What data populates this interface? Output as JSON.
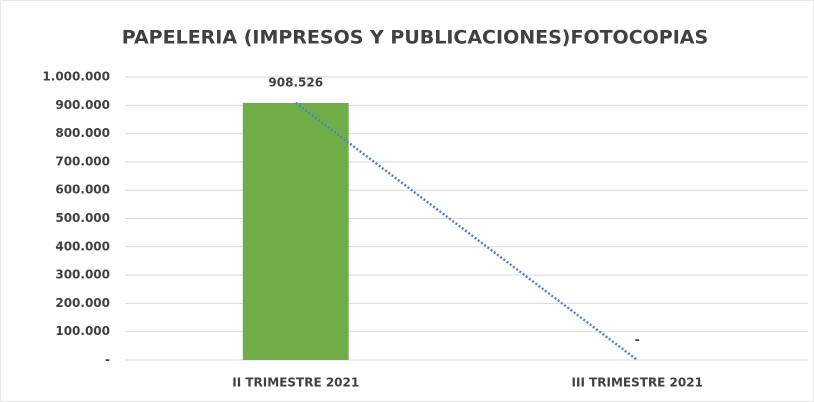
{
  "chart_data": {
    "type": "bar",
    "title": "PAPELERIA (IMPRESOS Y PUBLICACIONES)FOTOCOPIAS",
    "categories": [
      "II TRIMESTRE 2021",
      "III TRIMESTRE 2021"
    ],
    "values": [
      908526,
      0
    ],
    "value_labels": [
      "908.526",
      "-"
    ],
    "color": "#70ad47",
    "trendline": true,
    "trendline_color": "#4a86c8",
    "ylim": [
      0,
      1000000
    ],
    "yticks": [
      {
        "value": 0,
        "label": "-"
      },
      {
        "value": 100000,
        "label": "100.000"
      },
      {
        "value": 200000,
        "label": "200.000"
      },
      {
        "value": 300000,
        "label": "300.000"
      },
      {
        "value": 400000,
        "label": "400.000"
      },
      {
        "value": 500000,
        "label": "500.000"
      },
      {
        "value": 600000,
        "label": "600.000"
      },
      {
        "value": 700000,
        "label": "700.000"
      },
      {
        "value": 800000,
        "label": "800.000"
      },
      {
        "value": 900000,
        "label": "900.000"
      },
      {
        "value": 1000000,
        "label": "1.000.000"
      }
    ],
    "grid": true
  }
}
